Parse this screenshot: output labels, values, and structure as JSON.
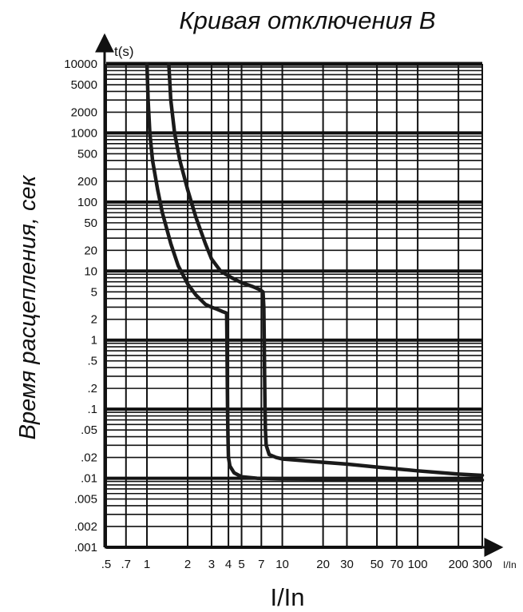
{
  "chart_data": {
    "type": "line",
    "title": "Кривая отключения B",
    "ylabel": "Время расцепления, сек",
    "y_unit": "t(s)",
    "xlabel": "I/In",
    "x_unit": "I/In",
    "x_scale": "log",
    "y_scale": "log",
    "xlim": [
      0.5,
      300
    ],
    "ylim": [
      0.001,
      10000
    ],
    "grid": true,
    "x_ticks": [
      {
        "value": 0.5,
        "label": ".5"
      },
      {
        "value": 0.7,
        "label": ".7"
      },
      {
        "value": 1,
        "label": "1"
      },
      {
        "value": 2,
        "label": "2"
      },
      {
        "value": 3,
        "label": "3"
      },
      {
        "value": 4,
        "label": "4"
      },
      {
        "value": 5,
        "label": "5"
      },
      {
        "value": 7,
        "label": "7"
      },
      {
        "value": 10,
        "label": "10"
      },
      {
        "value": 20,
        "label": "20"
      },
      {
        "value": 30,
        "label": "30"
      },
      {
        "value": 50,
        "label": "50"
      },
      {
        "value": 70,
        "label": "70"
      },
      {
        "value": 100,
        "label": "100"
      },
      {
        "value": 200,
        "label": "200"
      },
      {
        "value": 300,
        "label": "300"
      }
    ],
    "y_ticks": [
      {
        "value": 10000,
        "label": "10000"
      },
      {
        "value": 5000,
        "label": "5000"
      },
      {
        "value": 2000,
        "label": "2000"
      },
      {
        "value": 1000,
        "label": "1000"
      },
      {
        "value": 500,
        "label": "500"
      },
      {
        "value": 200,
        "label": "200"
      },
      {
        "value": 100,
        "label": "100"
      },
      {
        "value": 50,
        "label": "50"
      },
      {
        "value": 20,
        "label": "20"
      },
      {
        "value": 10,
        "label": "10"
      },
      {
        "value": 5,
        "label": "5"
      },
      {
        "value": 2,
        "label": "2"
      },
      {
        "value": 1,
        "label": "1"
      },
      {
        "value": 0.5,
        "label": ".5"
      },
      {
        "value": 0.2,
        "label": ".2"
      },
      {
        "value": 0.1,
        "label": ".1"
      },
      {
        "value": 0.05,
        "label": ".05"
      },
      {
        "value": 0.02,
        "label": ".02"
      },
      {
        "value": 0.01,
        "label": ".01"
      },
      {
        "value": 0.005,
        "label": ".005"
      },
      {
        "value": 0.002,
        "label": ".002"
      },
      {
        "value": 0.001,
        "label": ".001"
      }
    ],
    "series": [
      {
        "x": [
          1.0,
          1.02,
          1.05,
          1.1,
          1.2,
          1.3,
          1.5,
          1.7,
          2.0,
          2.3,
          2.7,
          3.0,
          3.3,
          3.6,
          3.8,
          3.88,
          3.9,
          3.92,
          3.94,
          3.96,
          3.98,
          4.0,
          4.1,
          4.4,
          5.0,
          6.5,
          10,
          30,
          100,
          300
        ],
        "y": [
          10000,
          3000,
          1000,
          400,
          150,
          70,
          25,
          12,
          6.5,
          4.5,
          3.3,
          3.0,
          2.8,
          2.6,
          2.5,
          2.45,
          1.0,
          0.3,
          0.1,
          0.05,
          0.03,
          0.02,
          0.015,
          0.012,
          0.0105,
          0.01,
          0.0098,
          0.0096,
          0.0095,
          0.0094
        ]
      },
      {
        "x": [
          1.45,
          1.5,
          1.6,
          1.75,
          2.0,
          2.3,
          2.7,
          3.0,
          3.5,
          4.0,
          4.5,
          5.0,
          6.0,
          6.8,
          7.2,
          7.3,
          7.35,
          7.4,
          7.45,
          7.5,
          7.6,
          8.0,
          9.0,
          10,
          20,
          30,
          50,
          100,
          200,
          300
        ],
        "y": [
          10000,
          3000,
          1000,
          400,
          150,
          60,
          25,
          15,
          10,
          8.5,
          7.5,
          6.8,
          6.0,
          5.4,
          5.0,
          3.0,
          1.0,
          0.3,
          0.1,
          0.05,
          0.03,
          0.022,
          0.02,
          0.019,
          0.017,
          0.016,
          0.0145,
          0.0128,
          0.0115,
          0.011
        ]
      }
    ]
  }
}
